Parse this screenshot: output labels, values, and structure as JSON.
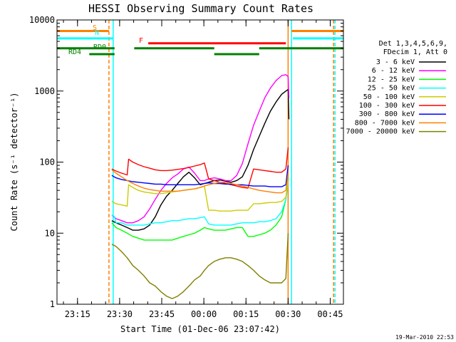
{
  "chart_data": {
    "type": "line",
    "title": "HESSI Observing Summary Count Rates",
    "xlabel": "Start Time (01-Dec-06 23:07:42)",
    "ylabel": "Count Rate (s⁻¹ detector⁻¹)",
    "ylim": [
      1,
      10000
    ],
    "yscale": "log",
    "grid": false,
    "x_tick_labels": [
      "23:15",
      "23:30",
      "23:45",
      "00:00",
      "00:15",
      "00:30",
      "00:45"
    ],
    "x_tick_minutes": [
      7.3,
      22.3,
      37.3,
      52.3,
      67.3,
      82.3,
      97.3
    ],
    "x_range_minutes": [
      0,
      102
    ],
    "y_ticks": [
      1,
      10,
      100,
      1000,
      10000
    ],
    "y_tick_labels": [
      "1",
      "10",
      "100",
      "1000",
      "10000"
    ],
    "legend_title": [
      "Det 1,3,4,5,6,9,",
      "FDecim 1, Att 0"
    ],
    "series": [
      {
        "name": "3 - 6 keV",
        "color": "#000000",
        "x": [
          19.5,
          21,
          23,
          25,
          27,
          29,
          31,
          33,
          35,
          37,
          39,
          41,
          43,
          45,
          47,
          49,
          51,
          52.5,
          54,
          56,
          58,
          60,
          62,
          64,
          66,
          68,
          70,
          72,
          74,
          76,
          78,
          80,
          81.5,
          82.3,
          82.6
        ],
        "y": [
          15,
          14,
          13,
          12,
          11,
          11,
          11.5,
          13,
          17,
          25,
          33,
          40,
          50,
          62,
          72,
          60,
          48,
          50,
          52,
          55,
          56,
          54,
          52,
          55,
          62,
          90,
          150,
          230,
          350,
          520,
          700,
          900,
          1000,
          1050,
          400
        ]
      },
      {
        "name": "6 - 12 keV",
        "color": "#ff00ff",
        "x": [
          19.5,
          21,
          23,
          25,
          27,
          29,
          31,
          33,
          35,
          37,
          39,
          41,
          43,
          45,
          47,
          49,
          51,
          52.5,
          54,
          56,
          58,
          60,
          62,
          64,
          66,
          68,
          70,
          72,
          74,
          76,
          78,
          80,
          81.5,
          82.3,
          82.6
        ],
        "y": [
          18,
          16,
          15,
          14,
          14,
          15,
          17,
          22,
          30,
          40,
          50,
          60,
          68,
          80,
          85,
          70,
          55,
          55,
          58,
          60,
          58,
          55,
          55,
          65,
          95,
          180,
          330,
          520,
          800,
          1100,
          1400,
          1650,
          1700,
          1600,
          800
        ]
      },
      {
        "name": "12 - 25 keV",
        "color": "#00ff00",
        "x": [
          19.5,
          21,
          23,
          25,
          27,
          29,
          31,
          33,
          35,
          37,
          39,
          41,
          43,
          45,
          47,
          49,
          51,
          52.5,
          54,
          56,
          58,
          60,
          62,
          64,
          66,
          68,
          70,
          72,
          74,
          76,
          78,
          80,
          81.5,
          82.3
        ],
        "y": [
          14,
          12,
          11,
          10,
          9,
          8.5,
          8,
          8,
          8,
          8,
          8,
          8,
          8.5,
          9,
          9.5,
          10,
          11,
          12,
          11.5,
          11,
          11,
          11,
          11.5,
          12,
          12,
          9,
          9,
          9.5,
          10,
          11,
          13,
          17,
          30,
          60
        ]
      },
      {
        "name": "25 - 50 keV",
        "color": "#00ffff",
        "x": [
          19.5,
          20.5,
          21,
          23,
          25,
          27,
          29,
          31,
          33,
          35,
          37,
          39,
          41,
          43,
          45,
          47,
          49,
          51,
          52.5,
          54,
          56,
          58,
          60,
          62,
          64,
          66,
          68,
          70,
          72,
          74,
          76,
          78,
          80,
          81.5,
          82.3
        ],
        "y": [
          18,
          17,
          14,
          14,
          13,
          13,
          13,
          13,
          13.5,
          14,
          14,
          14.5,
          15,
          15,
          15.5,
          16,
          16,
          16.5,
          17,
          13.5,
          13,
          13,
          13,
          13,
          13.5,
          14,
          14,
          14,
          14.5,
          14.5,
          15,
          16,
          20,
          30,
          50
        ]
      },
      {
        "name": "50 - 100 keV",
        "color": "#cccc00",
        "x": [
          19.5,
          21,
          23,
          25,
          25.5,
          27,
          29,
          31,
          33,
          35,
          37,
          39,
          41,
          43,
          45,
          47,
          49,
          51,
          52.5,
          54,
          56,
          58,
          60,
          62,
          64,
          66,
          68,
          70,
          72,
          74,
          76,
          78,
          80,
          81.5,
          82.3
        ],
        "y": [
          28,
          26,
          25,
          24,
          48,
          44,
          40,
          38,
          37,
          36,
          36,
          37,
          38,
          39,
          40,
          41,
          42,
          44,
          46,
          21,
          21,
          20.5,
          20.5,
          20.5,
          21,
          21,
          21,
          26,
          26,
          26.5,
          27,
          27,
          28,
          32,
          55
        ]
      },
      {
        "name": "100 - 300 keV",
        "color": "#ff0000",
        "x": [
          19.5,
          21,
          23,
          25,
          25.5,
          27,
          29,
          31,
          33,
          35,
          37,
          39,
          41,
          43,
          45,
          47,
          49,
          51,
          52.5,
          54,
          56,
          58,
          60,
          62,
          64,
          66,
          68,
          70,
          72,
          74,
          76,
          78,
          80,
          81.5,
          82.3
        ],
        "y": [
          80,
          75,
          70,
          66,
          110,
          100,
          92,
          86,
          82,
          78,
          76,
          76,
          77,
          79,
          81,
          84,
          88,
          92,
          97,
          58,
          55,
          52,
          50,
          48,
          46,
          44,
          43,
          80,
          78,
          76,
          74,
          72,
          72,
          80,
          160
        ]
      },
      {
        "name": "300 - 800 keV",
        "color": "#0000ff",
        "x": [
          19.5,
          21,
          23,
          25,
          27,
          29,
          31,
          33,
          35,
          37,
          39,
          41,
          43,
          45,
          47,
          49,
          51,
          52.5,
          54,
          56,
          58,
          60,
          62,
          64,
          66,
          68,
          70,
          72,
          74,
          76,
          78,
          80,
          81.5,
          82.3
        ],
        "y": [
          65,
          60,
          57,
          55,
          53,
          52,
          51,
          50,
          49,
          49,
          48,
          48,
          48,
          48,
          48,
          48,
          49,
          50,
          51,
          50,
          50,
          49,
          49,
          48,
          48,
          47,
          46,
          46,
          46,
          45,
          45,
          45,
          48,
          90
        ]
      },
      {
        "name": "800 - 7000 keV",
        "color": "#ff8000",
        "x": [
          19.5,
          21,
          23,
          25,
          27,
          29,
          31,
          33,
          35,
          37,
          39,
          41,
          43,
          45,
          47,
          49,
          51,
          52.5,
          54,
          56,
          58,
          60,
          62,
          64,
          66,
          68,
          70,
          72,
          74,
          76,
          78,
          80,
          81.5,
          82.3
        ],
        "y": [
          78,
          70,
          62,
          55,
          50,
          46,
          43,
          41,
          40,
          39,
          39,
          39,
          39,
          40,
          41,
          42,
          44,
          46,
          48,
          50,
          52,
          52,
          50,
          48,
          46,
          44,
          42,
          40,
          39,
          38,
          37,
          37,
          40,
          70
        ]
      },
      {
        "name": "7000 - 20000 keV",
        "color": "#808000",
        "x": [
          19.5,
          21,
          23,
          25,
          27,
          29,
          31,
          33,
          35,
          37,
          39,
          41,
          43,
          45,
          47,
          49,
          51,
          52.5,
          54,
          56,
          58,
          60,
          62,
          64,
          66,
          68,
          70,
          72,
          74,
          76,
          78,
          80,
          81.5,
          82.3
        ],
        "y": [
          7,
          6.5,
          5.5,
          4.5,
          3.5,
          3,
          2.5,
          2,
          1.8,
          1.5,
          1.3,
          1.2,
          1.3,
          1.5,
          1.8,
          2.2,
          2.5,
          3,
          3.5,
          4,
          4.3,
          4.5,
          4.5,
          4.3,
          4,
          3.5,
          3,
          2.5,
          2.2,
          2,
          2,
          2,
          2.3,
          10
        ]
      }
    ],
    "flag_bars": [
      {
        "label": "S",
        "color": "#ff8000",
        "segments": [
          [
            0,
            18.5
          ],
          [
            83.5,
            102
          ]
        ],
        "y_level": 7000
      },
      {
        "label": "N",
        "color": "#00ffff",
        "segments": [
          [
            0,
            20
          ],
          [
            84,
            102
          ]
        ],
        "y_level": 5500
      },
      {
        "label": "F",
        "color": "#ff0000",
        "segments": [
          [
            32.5,
            81.5
          ]
        ],
        "y_level": 4700
      },
      {
        "label": "RD0",
        "color": "#008000",
        "segments": [
          [
            0,
            20.5
          ],
          [
            27.5,
            56
          ],
          [
            72,
            102
          ]
        ],
        "y_level": 4000
      },
      {
        "label": "RD4",
        "color": "#008000",
        "segments": [
          [
            11.5,
            20.5
          ],
          [
            56,
            72
          ]
        ],
        "y_level": 3300
      }
    ],
    "vertical_lines": [
      {
        "color": "#ff8000",
        "x": 18.5,
        "dashed": true
      },
      {
        "color": "#00ffff",
        "x": 20,
        "dashed": false
      },
      {
        "color": "#ff8000",
        "x": 82.3,
        "dashed": false
      },
      {
        "color": "#00ffff",
        "x": 83.5,
        "dashed": false
      },
      {
        "color": "#ff8000",
        "x": 98.5,
        "dashed": true
      },
      {
        "color": "#00ffff",
        "x": 99,
        "dashed": true
      }
    ],
    "footer_date": "19-Mar-2010 22:53"
  }
}
